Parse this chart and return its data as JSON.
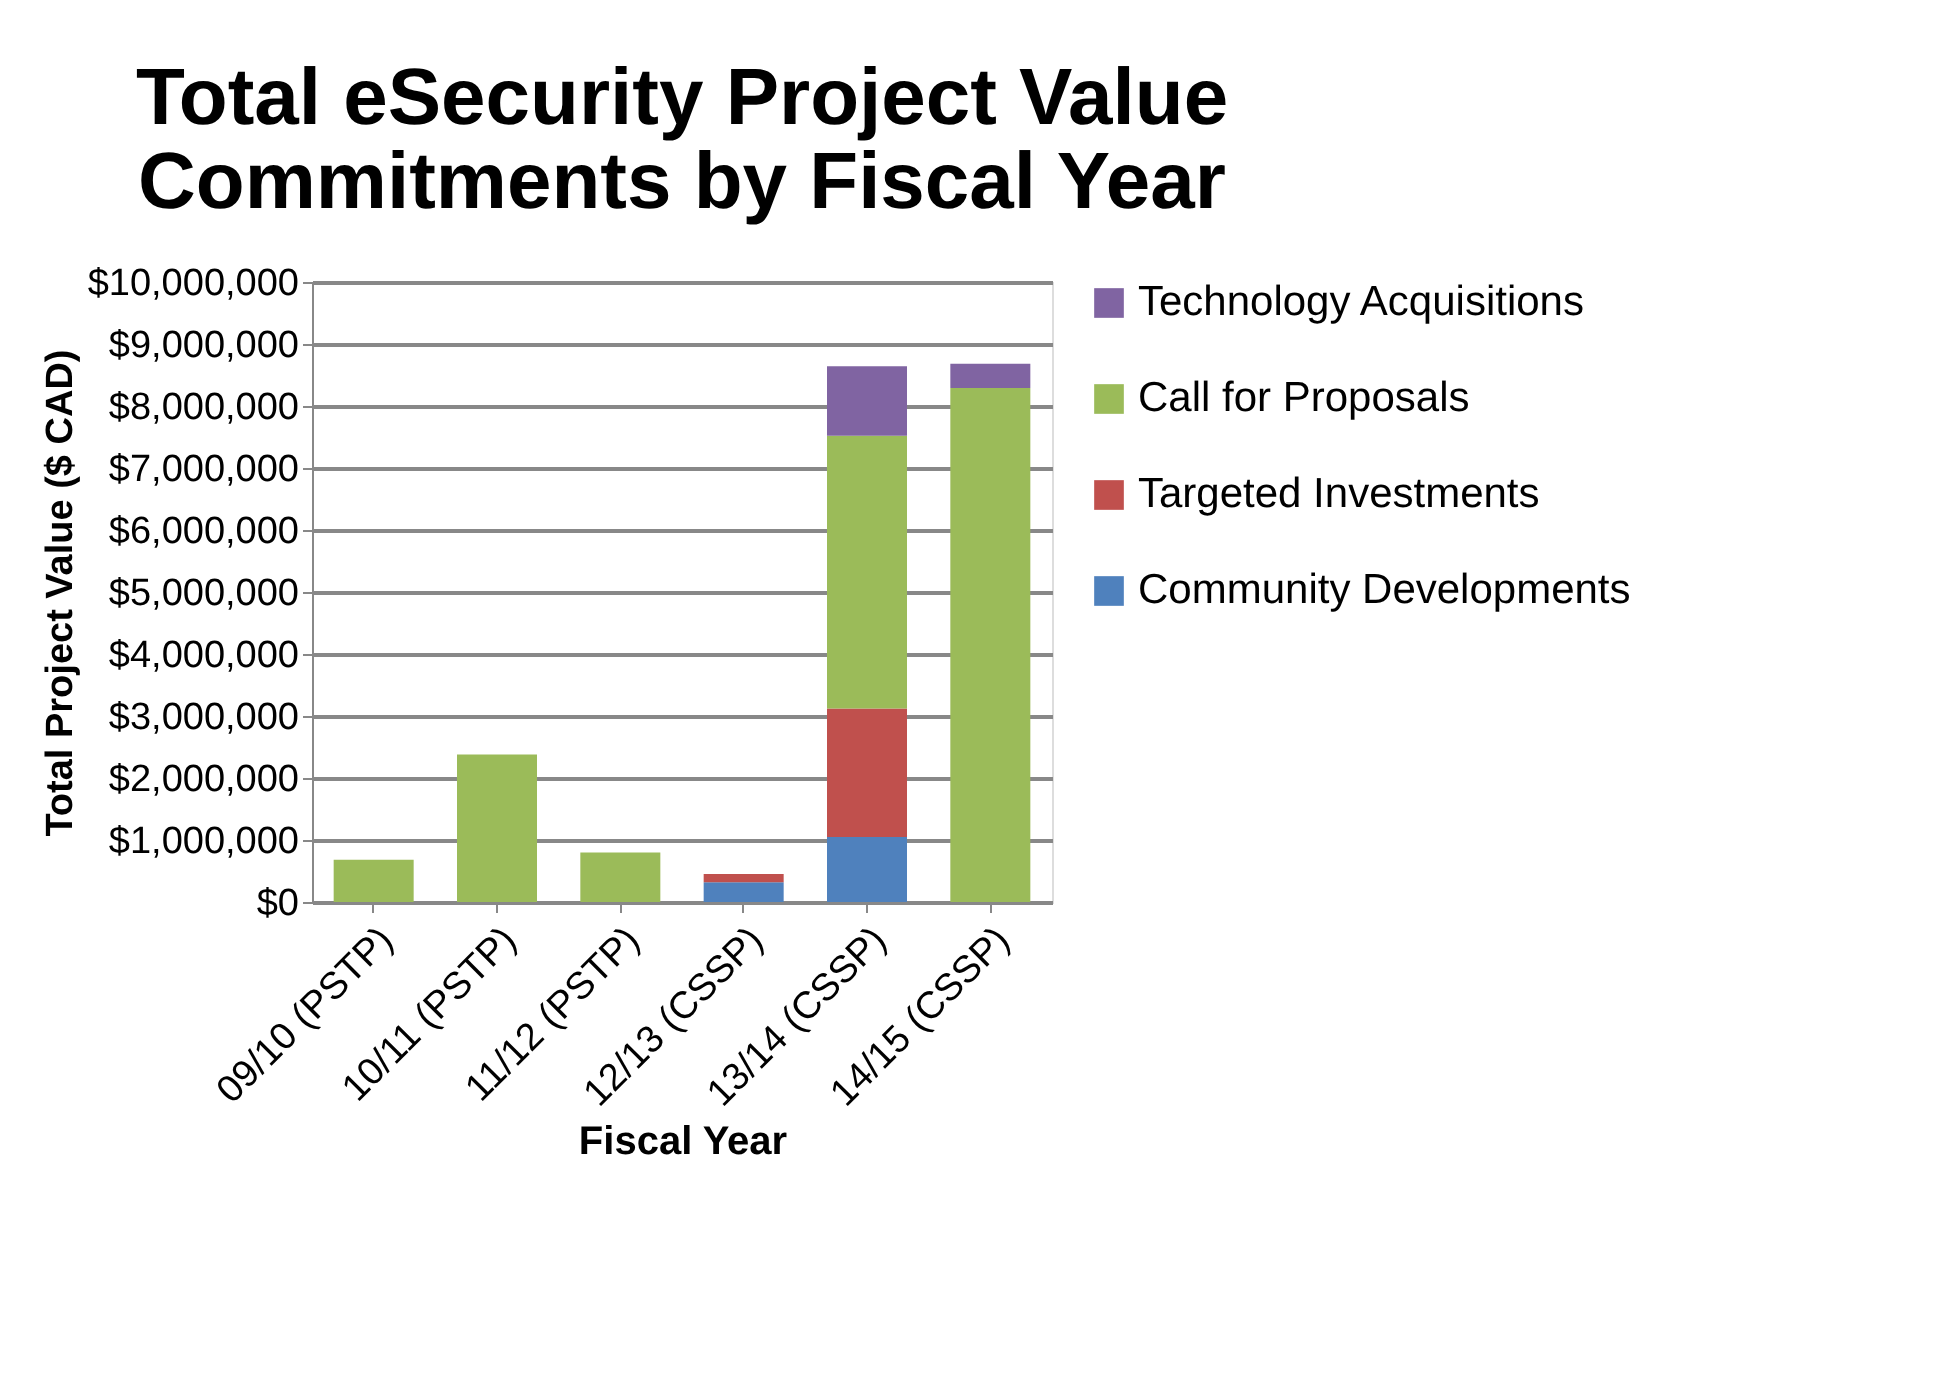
{
  "chart_data": {
    "type": "bar",
    "title": "Total eSecurity Project Value\nCommitments by Fiscal Year",
    "xlabel": "Fiscal Year",
    "ylabel": "Total Project Value ($ CAD)",
    "categories": [
      "09/10 (PSTP)",
      "10/11 (PSTP)",
      "11/12 (PSTP)",
      "12/13 (CSSP)",
      "13/14 (CSSP)",
      "14/15 (CSSP)"
    ],
    "stacked": true,
    "series": [
      {
        "name": "Community Developments",
        "color": "#4f81bd",
        "values": [
          null,
          null,
          null,
          320000,
          1050000,
          null
        ]
      },
      {
        "name": "Targeted Investments",
        "color": "#c0504d",
        "values": [
          null,
          null,
          null,
          130000,
          2070000,
          null
        ]
      },
      {
        "name": "Call for Proposals",
        "color": "#9bbb59",
        "values": [
          680000,
          2380000,
          800000,
          null,
          4400000,
          8290000
        ]
      },
      {
        "name": "Technology Acquisitions",
        "color": "#8064a2",
        "values": [
          null,
          null,
          null,
          null,
          1120000,
          390000
        ]
      }
    ],
    "ylim": [
      0,
      10000000
    ],
    "yticks": [
      {
        "value": 0,
        "label": "$0"
      },
      {
        "value": 1000000,
        "label": "$1,000,000"
      },
      {
        "value": 2000000,
        "label": "$2,000,000"
      },
      {
        "value": 3000000,
        "label": "$3,000,000"
      },
      {
        "value": 4000000,
        "label": "$4,000,000"
      },
      {
        "value": 5000000,
        "label": "$5,000,000"
      },
      {
        "value": 6000000,
        "label": "$6,000,000"
      },
      {
        "value": 7000000,
        "label": "$7,000,000"
      },
      {
        "value": 8000000,
        "label": "$8,000,000"
      },
      {
        "value": 9000000,
        "label": "$9,000,000"
      },
      {
        "value": 10000000,
        "label": "$10,000,000"
      }
    ],
    "grid": "y",
    "legend": "right"
  }
}
